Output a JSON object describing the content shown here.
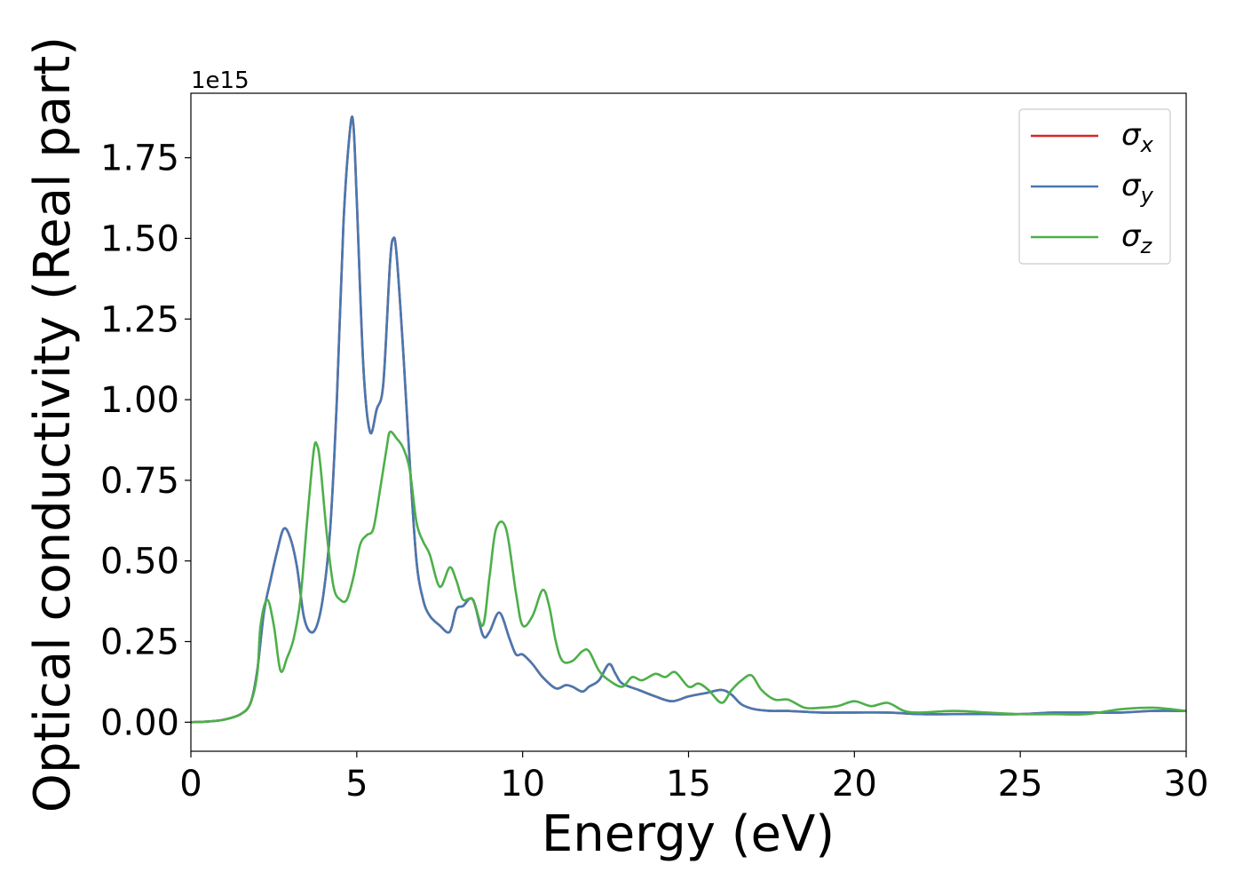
{
  "chart_data": {
    "type": "line",
    "xlabel": "Energy (eV)",
    "ylabel": "Optical conductivity (Real part)",
    "offset_label": "1e15",
    "y_scale_factor": 1000000000000000.0,
    "xlim": [
      0,
      30
    ],
    "ylim": [
      -0.09,
      1.95
    ],
    "x_ticks": [
      0,
      5,
      10,
      15,
      20,
      25,
      30
    ],
    "x_tick_labels": [
      "0",
      "5",
      "10",
      "15",
      "20",
      "25",
      "30"
    ],
    "y_ticks": [
      0,
      0.25,
      0.5,
      0.75,
      1.0,
      1.25,
      1.5,
      1.75
    ],
    "y_tick_labels": [
      "0.00",
      "0.25",
      "0.50",
      "0.75",
      "1.00",
      "1.25",
      "1.50",
      "1.75"
    ],
    "grid": false,
    "legend_position": "top-right",
    "series": [
      {
        "name": "σx",
        "legend_base": "σ",
        "legend_sub": "x",
        "color": "#d62728",
        "x": [
          0,
          0.5,
          1.0,
          1.5,
          1.8,
          2.0,
          2.2,
          2.4,
          2.6,
          2.8,
          3.0,
          3.2,
          3.4,
          3.6,
          3.8,
          4.0,
          4.2,
          4.4,
          4.6,
          4.8,
          4.9,
          5.0,
          5.2,
          5.4,
          5.6,
          5.8,
          6.0,
          6.1,
          6.2,
          6.4,
          6.6,
          6.8,
          7.0,
          7.2,
          7.5,
          7.8,
          8.0,
          8.2,
          8.5,
          8.8,
          9.0,
          9.3,
          9.6,
          9.8,
          10.0,
          10.3,
          10.6,
          11.0,
          11.3,
          11.5,
          11.8,
          12.0,
          12.3,
          12.6,
          12.8,
          13.0,
          13.5,
          14.0,
          14.5,
          15.0,
          15.5,
          16.0,
          16.3,
          16.6,
          17.0,
          17.5,
          18.0,
          19.0,
          20.0,
          21.0,
          22.0,
          23.0,
          24.0,
          25.0,
          26.0,
          27.0,
          28.0,
          29.0,
          30.0
        ],
        "values": [
          0,
          0.002,
          0.008,
          0.025,
          0.06,
          0.16,
          0.34,
          0.44,
          0.53,
          0.6,
          0.57,
          0.48,
          0.33,
          0.28,
          0.3,
          0.4,
          0.6,
          1.0,
          1.55,
          1.84,
          1.85,
          1.62,
          1.1,
          0.9,
          0.97,
          1.05,
          1.42,
          1.5,
          1.45,
          1.15,
          0.8,
          0.5,
          0.38,
          0.33,
          0.3,
          0.28,
          0.35,
          0.36,
          0.38,
          0.27,
          0.28,
          0.34,
          0.26,
          0.21,
          0.21,
          0.18,
          0.14,
          0.105,
          0.115,
          0.11,
          0.095,
          0.11,
          0.13,
          0.18,
          0.15,
          0.12,
          0.1,
          0.08,
          0.065,
          0.08,
          0.09,
          0.1,
          0.085,
          0.055,
          0.04,
          0.035,
          0.035,
          0.03,
          0.03,
          0.03,
          0.025,
          0.025,
          0.025,
          0.025,
          0.03,
          0.03,
          0.03,
          0.035,
          0.035
        ]
      },
      {
        "name": "σy",
        "legend_base": "σ",
        "legend_sub": "y",
        "color": "#4878b0",
        "x": [
          0,
          0.5,
          1.0,
          1.5,
          1.8,
          2.0,
          2.2,
          2.4,
          2.6,
          2.8,
          3.0,
          3.2,
          3.4,
          3.6,
          3.8,
          4.0,
          4.2,
          4.4,
          4.6,
          4.8,
          4.9,
          5.0,
          5.2,
          5.4,
          5.6,
          5.8,
          6.0,
          6.1,
          6.2,
          6.4,
          6.6,
          6.8,
          7.0,
          7.2,
          7.5,
          7.8,
          8.0,
          8.2,
          8.5,
          8.8,
          9.0,
          9.3,
          9.6,
          9.8,
          10.0,
          10.3,
          10.6,
          11.0,
          11.3,
          11.5,
          11.8,
          12.0,
          12.3,
          12.6,
          12.8,
          13.0,
          13.5,
          14.0,
          14.5,
          15.0,
          15.5,
          16.0,
          16.3,
          16.6,
          17.0,
          17.5,
          18.0,
          19.0,
          20.0,
          21.0,
          22.0,
          23.0,
          24.0,
          25.0,
          26.0,
          27.0,
          28.0,
          29.0,
          30.0
        ],
        "values": [
          0,
          0.002,
          0.008,
          0.025,
          0.06,
          0.16,
          0.34,
          0.44,
          0.53,
          0.6,
          0.57,
          0.48,
          0.33,
          0.28,
          0.3,
          0.4,
          0.6,
          1.0,
          1.55,
          1.84,
          1.85,
          1.62,
          1.1,
          0.9,
          0.97,
          1.05,
          1.42,
          1.5,
          1.45,
          1.15,
          0.8,
          0.5,
          0.38,
          0.33,
          0.3,
          0.28,
          0.35,
          0.36,
          0.38,
          0.27,
          0.28,
          0.34,
          0.26,
          0.21,
          0.21,
          0.18,
          0.14,
          0.105,
          0.115,
          0.11,
          0.095,
          0.11,
          0.13,
          0.18,
          0.15,
          0.12,
          0.1,
          0.08,
          0.065,
          0.08,
          0.09,
          0.1,
          0.085,
          0.055,
          0.04,
          0.035,
          0.035,
          0.03,
          0.03,
          0.03,
          0.025,
          0.025,
          0.025,
          0.025,
          0.03,
          0.03,
          0.03,
          0.035,
          0.035
        ]
      },
      {
        "name": "σz",
        "legend_base": "σ",
        "legend_sub": "z",
        "color": "#4daf4a",
        "x": [
          0,
          0.5,
          1.0,
          1.5,
          1.8,
          2.0,
          2.1,
          2.3,
          2.5,
          2.7,
          2.9,
          3.1,
          3.3,
          3.5,
          3.7,
          3.8,
          3.9,
          4.1,
          4.3,
          4.5,
          4.7,
          4.9,
          5.1,
          5.3,
          5.5,
          5.7,
          5.9,
          6.0,
          6.2,
          6.4,
          6.6,
          6.8,
          7.0,
          7.2,
          7.5,
          7.8,
          8.0,
          8.2,
          8.5,
          8.8,
          9.0,
          9.2,
          9.5,
          9.8,
          10.0,
          10.3,
          10.6,
          10.8,
          11.0,
          11.2,
          11.5,
          11.8,
          12.0,
          12.3,
          12.6,
          13.0,
          13.3,
          13.6,
          14.0,
          14.3,
          14.6,
          15.0,
          15.3,
          15.6,
          16.0,
          16.3,
          16.6,
          16.9,
          17.2,
          17.6,
          18.0,
          18.5,
          19.0,
          19.5,
          20.0,
          20.5,
          21.0,
          21.5,
          22.0,
          23.0,
          24.0,
          25.0,
          26.0,
          27.0,
          28.0,
          29.0,
          30.0
        ],
        "values": [
          0,
          0.002,
          0.008,
          0.025,
          0.06,
          0.15,
          0.3,
          0.38,
          0.3,
          0.16,
          0.2,
          0.26,
          0.38,
          0.62,
          0.84,
          0.86,
          0.8,
          0.58,
          0.42,
          0.38,
          0.38,
          0.45,
          0.55,
          0.58,
          0.6,
          0.72,
          0.85,
          0.9,
          0.88,
          0.85,
          0.78,
          0.62,
          0.56,
          0.52,
          0.42,
          0.48,
          0.44,
          0.38,
          0.38,
          0.3,
          0.45,
          0.6,
          0.6,
          0.4,
          0.3,
          0.33,
          0.41,
          0.36,
          0.25,
          0.19,
          0.19,
          0.22,
          0.22,
          0.16,
          0.13,
          0.11,
          0.14,
          0.13,
          0.15,
          0.14,
          0.155,
          0.11,
          0.12,
          0.1,
          0.06,
          0.1,
          0.13,
          0.145,
          0.1,
          0.07,
          0.07,
          0.045,
          0.045,
          0.05,
          0.065,
          0.05,
          0.06,
          0.035,
          0.03,
          0.035,
          0.03,
          0.025,
          0.025,
          0.025,
          0.04,
          0.045,
          0.035
        ]
      }
    ]
  }
}
